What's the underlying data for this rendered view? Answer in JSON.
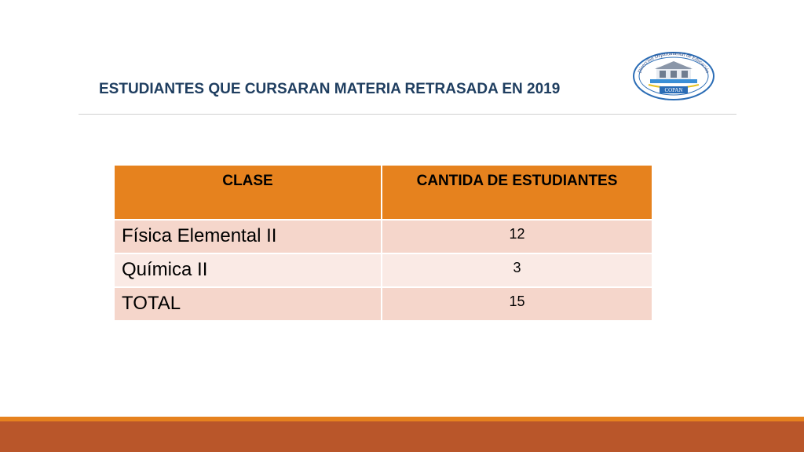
{
  "slide": {
    "title": "ESTUDIANTES QUE CURSARAN MATERIA RETRASADA  EN 2019"
  },
  "logo": {
    "icon": "seal-logo",
    "text_top": "Dirección Departamental de Educación",
    "text_bottom": "COPAN"
  },
  "table": {
    "headers": [
      "CLASE",
      "CANTIDA DE ESTUDIANTES"
    ],
    "rows": [
      {
        "clase": "Física Elemental II",
        "cantidad": "12"
      },
      {
        "clase": "Química II",
        "cantidad": "3"
      },
      {
        "clase": "TOTAL",
        "cantidad": "15"
      }
    ]
  },
  "colors": {
    "title": "#1f3e60",
    "header_bg": "#e6821e",
    "row_odd": "#f5d6cb",
    "row_even": "#faeae5",
    "footer": "#b9562a",
    "footer_accent": "#e6821e"
  }
}
